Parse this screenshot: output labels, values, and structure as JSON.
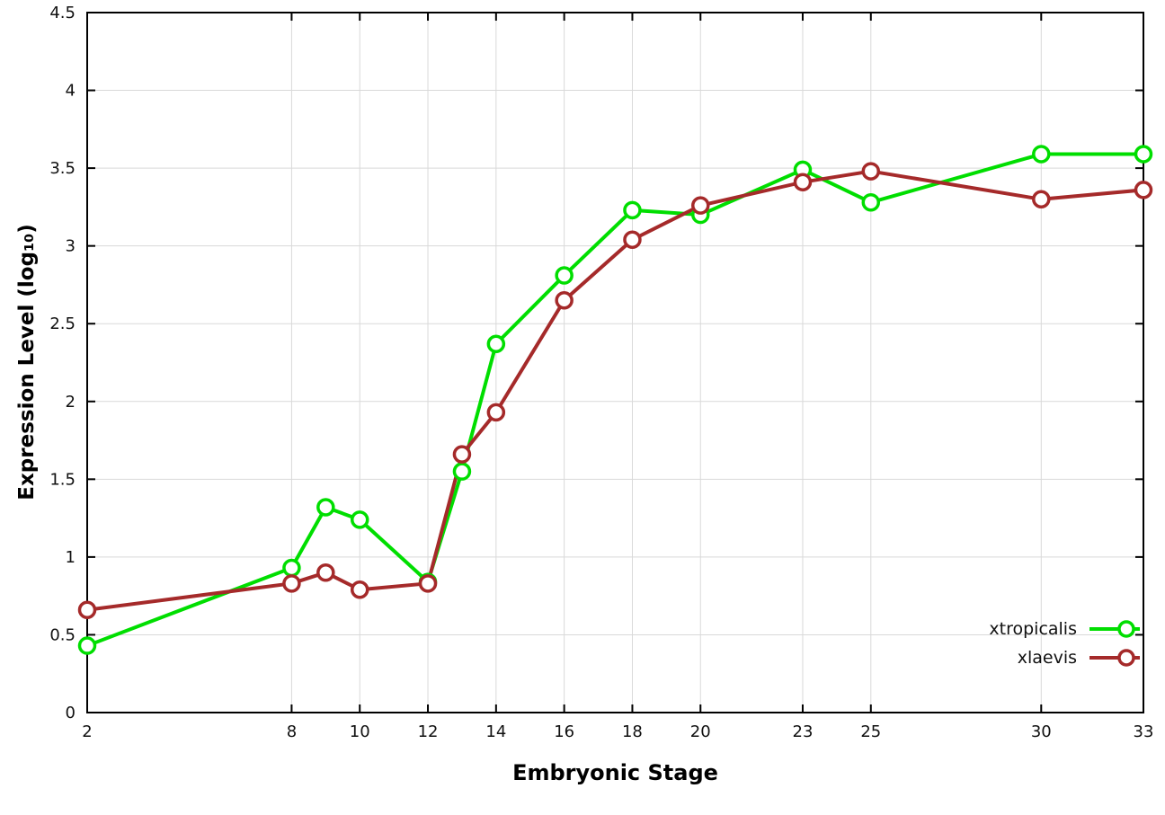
{
  "chart_data": {
    "type": "line",
    "title": "",
    "xlabel": "Embryonic Stage",
    "ylabel": "Expression Level (log₁₀)",
    "x": [
      2,
      8,
      9,
      10,
      12,
      13,
      14,
      16,
      18,
      20,
      23,
      25,
      30,
      33
    ],
    "series": [
      {
        "name": "xtropicalis",
        "color": "#00de00",
        "values": [
          0.43,
          0.93,
          1.32,
          1.24,
          0.84,
          1.55,
          2.37,
          2.81,
          3.23,
          3.2,
          3.49,
          3.28,
          3.59,
          3.59
        ]
      },
      {
        "name": "xlaevis",
        "color": "#a52a2a",
        "values": [
          0.66,
          0.83,
          0.9,
          0.79,
          0.83,
          1.66,
          1.93,
          2.65,
          3.04,
          3.26,
          3.41,
          3.48,
          3.3,
          3.36
        ]
      }
    ],
    "xlim": [
      2,
      33
    ],
    "ylim": [
      0,
      4.5
    ],
    "xticks": [
      2,
      8,
      10,
      12,
      14,
      16,
      18,
      20,
      23,
      25,
      30,
      33
    ],
    "yticks": [
      0,
      0.5,
      1,
      1.5,
      2,
      2.5,
      3,
      3.5,
      4,
      4.5
    ],
    "grid": true,
    "legend_position": "bottom-right",
    "colors": {
      "grid": "#d9d9d9",
      "border": "#000000",
      "tick_text": "#111111"
    }
  }
}
